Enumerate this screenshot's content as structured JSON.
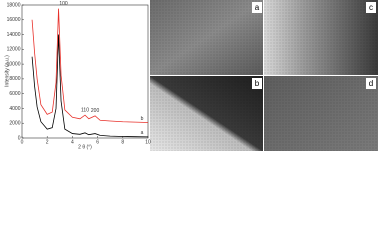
{
  "chart_data": {
    "type": "line",
    "x_label": "2 θ (°)",
    "y_label": "Intensity (a.u.)",
    "x": [
      0.8,
      1,
      1.2,
      1.5,
      2,
      2.4,
      2.7,
      2.9,
      3.1,
      3.4,
      4,
      4.6,
      5,
      5.3,
      5.8,
      6.2,
      7,
      8,
      9,
      10
    ],
    "series": [
      {
        "name": "a",
        "color": "#000000",
        "values": [
          11000,
          7000,
          4200,
          2200,
          1200,
          1400,
          4000,
          14000,
          5000,
          1200,
          600,
          500,
          700,
          450,
          600,
          350,
          250,
          200,
          180,
          150
        ]
      },
      {
        "name": "b",
        "color": "#e8302a",
        "values": [
          16000,
          11500,
          8000,
          4500,
          3200,
          3500,
          7500,
          17500,
          8500,
          3800,
          2800,
          2600,
          3100,
          2600,
          3000,
          2400,
          2300,
          2200,
          2150,
          2100
        ]
      }
    ],
    "peak_labels": [
      "100",
      "110",
      "200"
    ],
    "xlim": [
      0,
      10
    ],
    "xticks": [
      0,
      2,
      4,
      6,
      8,
      10
    ],
    "ylim": [
      0,
      18000
    ],
    "yticks": [
      0,
      2000,
      4000,
      6000,
      8000,
      10000,
      12000,
      14000,
      16000,
      18000
    ]
  },
  "panels": {
    "labels": [
      "a",
      "c",
      "b",
      "d"
    ]
  }
}
